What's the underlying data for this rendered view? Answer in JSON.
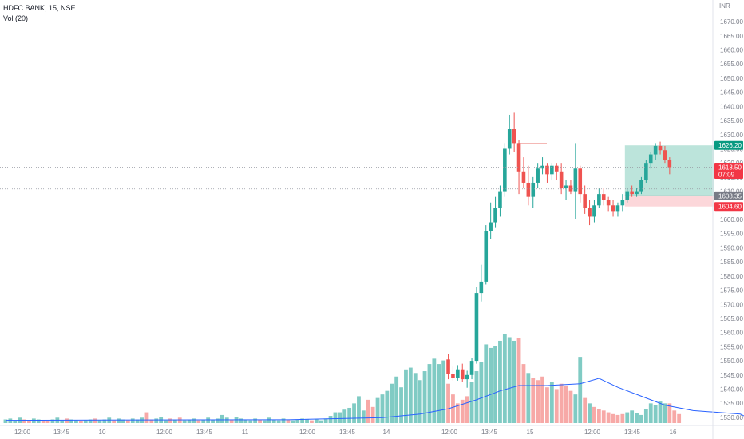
{
  "legend": {
    "symbol": "HDFC BANK, 15, NSE",
    "indicator": "Vol (20)"
  },
  "currency": "INR",
  "colors": {
    "up": "#26a69a",
    "down": "#ef5350",
    "up_vol": "#80cbc4",
    "down_vol": "#f7a9a7",
    "ma": "#2962ff",
    "profit_zone": "#9fd8cc",
    "loss_zone": "#fbd0d4",
    "resistance": "#e0413a",
    "last_price": "#f23645",
    "grey_tag": "#787b86",
    "green_tag": "#089981",
    "red_tag": "#f23645"
  },
  "chart_data": {
    "type": "candlestick",
    "ylim": [
      1528,
      1672
    ],
    "y_ticks": [
      1530,
      1535,
      1540,
      1545,
      1550,
      1555,
      1560,
      1565,
      1570,
      1575,
      1580,
      1585,
      1590,
      1595,
      1600,
      1605,
      1610,
      1615,
      1620,
      1625,
      1630,
      1635,
      1640,
      1645,
      1650,
      1655,
      1660,
      1665,
      1670
    ],
    "x_tick_labels": [
      "12:00",
      "13:45",
      "10",
      "12:00",
      "13:45",
      "11",
      "12:00",
      "13:45",
      "14",
      "12:00",
      "13:45",
      "15",
      "12:00",
      "13:45",
      "16"
    ],
    "candles_start_index": 94,
    "candles": [
      [
        1550.5,
        1552.5,
        1543.5,
        1545.5
      ],
      [
        1545.5,
        1548,
        1543,
        1544
      ],
      [
        1544,
        1548.5,
        1543,
        1547
      ],
      [
        1547,
        1549,
        1542.5,
        1543.5
      ],
      [
        1543.5,
        1546.5,
        1540.5,
        1545
      ],
      [
        1545,
        1551,
        1543.5,
        1550
      ],
      [
        1550,
        1576,
        1549,
        1574
      ],
      [
        1574,
        1584,
        1571,
        1578
      ],
      [
        1578,
        1598,
        1577,
        1596
      ],
      [
        1596,
        1606,
        1593,
        1599
      ],
      [
        1599,
        1608,
        1597,
        1604
      ],
      [
        1604,
        1612,
        1601,
        1610
      ],
      [
        1610,
        1627,
        1608,
        1625
      ],
      [
        1625,
        1637,
        1623,
        1632
      ],
      [
        1632,
        1638,
        1624,
        1627
      ],
      [
        1627,
        1628,
        1609,
        1617
      ],
      [
        1617,
        1622,
        1611,
        1613
      ],
      [
        1613,
        1619,
        1605,
        1608
      ],
      [
        1608,
        1615,
        1604,
        1613
      ],
      [
        1613,
        1620,
        1611,
        1618
      ],
      [
        1618,
        1622,
        1616,
        1619
      ],
      [
        1619,
        1620,
        1613,
        1616
      ],
      [
        1616,
        1620,
        1614,
        1619
      ],
      [
        1619,
        1620,
        1614,
        1617
      ],
      [
        1617,
        1620,
        1609,
        1611
      ],
      [
        1611,
        1614,
        1607,
        1612
      ],
      [
        1612,
        1614,
        1609,
        1610
      ],
      [
        1610,
        1627,
        1600,
        1618
      ],
      [
        1618,
        1619,
        1606,
        1609
      ],
      [
        1609,
        1612,
        1602,
        1604
      ],
      [
        1604,
        1607,
        1598,
        1601
      ],
      [
        1601,
        1607,
        1599,
        1605
      ],
      [
        1605,
        1611,
        1604,
        1609
      ],
      [
        1609,
        1611,
        1605,
        1607
      ],
      [
        1607,
        1608,
        1603,
        1605
      ],
      [
        1605,
        1607,
        1601,
        1603
      ],
      [
        1603,
        1606,
        1601,
        1605
      ],
      [
        1605,
        1609,
        1603,
        1607
      ],
      [
        1607,
        1611,
        1606,
        1610
      ],
      [
        1610,
        1612,
        1608,
        1609
      ],
      [
        1609,
        1611,
        1608,
        1610
      ],
      [
        1610,
        1615,
        1609,
        1614
      ],
      [
        1614,
        1621,
        1613,
        1620
      ],
      [
        1620,
        1624,
        1618,
        1623
      ],
      [
        1623,
        1627,
        1621,
        1626
      ],
      [
        1626,
        1627.5,
        1623,
        1624.5
      ],
      [
        1624.5,
        1626,
        1620,
        1621
      ],
      [
        1621,
        1622,
        1616,
        1618.5
      ]
    ],
    "volume_units": "relative (0-100)",
    "volume": [
      [
        4,
        0
      ],
      [
        5,
        0
      ],
      [
        3,
        0
      ],
      [
        6,
        0
      ],
      [
        4,
        1
      ],
      [
        3,
        1
      ],
      [
        5,
        0
      ],
      [
        4,
        0
      ],
      [
        3,
        1
      ],
      [
        2,
        1
      ],
      [
        4,
        0
      ],
      [
        6,
        0
      ],
      [
        3,
        0
      ],
      [
        5,
        1
      ],
      [
        4,
        0
      ],
      [
        3,
        0
      ],
      [
        2,
        1
      ],
      [
        3,
        0
      ],
      [
        4,
        0
      ],
      [
        5,
        1
      ],
      [
        3,
        0
      ],
      [
        4,
        0
      ],
      [
        6,
        0
      ],
      [
        3,
        1
      ],
      [
        5,
        0
      ],
      [
        4,
        0
      ],
      [
        3,
        1
      ],
      [
        5,
        0
      ],
      [
        4,
        0
      ],
      [
        6,
        0
      ],
      [
        12,
        1
      ],
      [
        4,
        1
      ],
      [
        5,
        0
      ],
      [
        7,
        0
      ],
      [
        3,
        0
      ],
      [
        5,
        1
      ],
      [
        4,
        0
      ],
      [
        6,
        1
      ],
      [
        3,
        0
      ],
      [
        4,
        0
      ],
      [
        5,
        0
      ],
      [
        3,
        1
      ],
      [
        4,
        0
      ],
      [
        6,
        0
      ],
      [
        4,
        0
      ],
      [
        5,
        0
      ],
      [
        9,
        0
      ],
      [
        6,
        0
      ],
      [
        4,
        1
      ],
      [
        7,
        0
      ],
      [
        5,
        0
      ],
      [
        4,
        0
      ],
      [
        3,
        0
      ],
      [
        5,
        0
      ],
      [
        4,
        1
      ],
      [
        3,
        0
      ],
      [
        6,
        0
      ],
      [
        4,
        0
      ],
      [
        3,
        0
      ],
      [
        5,
        0
      ],
      [
        4,
        1
      ],
      [
        3,
        0
      ],
      [
        4,
        0
      ],
      [
        5,
        0
      ],
      [
        4,
        0
      ],
      [
        3,
        1
      ],
      [
        4,
        0
      ],
      [
        3,
        0
      ],
      [
        5,
        0
      ],
      [
        8,
        0
      ],
      [
        12,
        0
      ],
      [
        12,
        0
      ],
      [
        15,
        0
      ],
      [
        17,
        0
      ],
      [
        22,
        0
      ],
      [
        30,
        0
      ],
      [
        14,
        0
      ],
      [
        26,
        1
      ],
      [
        18,
        1
      ],
      [
        28,
        0
      ],
      [
        32,
        0
      ],
      [
        36,
        0
      ],
      [
        44,
        0
      ],
      [
        52,
        0
      ],
      [
        40,
        0
      ],
      [
        60,
        0
      ],
      [
        62,
        0
      ],
      [
        56,
        0
      ],
      [
        48,
        0
      ],
      [
        58,
        0
      ],
      [
        66,
        0
      ],
      [
        72,
        0
      ],
      [
        66,
        0
      ],
      [
        70,
        0
      ],
      [
        44,
        1
      ],
      [
        32,
        1
      ],
      [
        22,
        1
      ],
      [
        26,
        1
      ],
      [
        30,
        1
      ],
      [
        46,
        0
      ],
      [
        58,
        0
      ],
      [
        68,
        0
      ],
      [
        88,
        0
      ],
      [
        84,
        0
      ],
      [
        86,
        0
      ],
      [
        92,
        0
      ],
      [
        100,
        0
      ],
      [
        96,
        0
      ],
      [
        92,
        0
      ],
      [
        95,
        1
      ],
      [
        66,
        1
      ],
      [
        56,
        0
      ],
      [
        50,
        1
      ],
      [
        48,
        1
      ],
      [
        52,
        1
      ],
      [
        40,
        1
      ],
      [
        46,
        0
      ],
      [
        38,
        1
      ],
      [
        44,
        1
      ],
      [
        42,
        1
      ],
      [
        36,
        1
      ],
      [
        32,
        0
      ],
      [
        74,
        0
      ],
      [
        28,
        1
      ],
      [
        22,
        0
      ],
      [
        18,
        1
      ],
      [
        16,
        1
      ],
      [
        14,
        1
      ],
      [
        12,
        1
      ],
      [
        10,
        1
      ],
      [
        9,
        1
      ],
      [
        10,
        1
      ],
      [
        12,
        0
      ],
      [
        14,
        0
      ],
      [
        11,
        0
      ],
      [
        9,
        0
      ],
      [
        16,
        0
      ],
      [
        22,
        0
      ],
      [
        20,
        0
      ],
      [
        24,
        0
      ],
      [
        22,
        0
      ],
      [
        22,
        1
      ],
      [
        14,
        1
      ],
      [
        10,
        1
      ]
    ],
    "volume_ma": [
      [
        0,
        3
      ],
      [
        30,
        3.5
      ],
      [
        60,
        3.7
      ],
      [
        80,
        6
      ],
      [
        88,
        10
      ],
      [
        94,
        16
      ],
      [
        100,
        26
      ],
      [
        105,
        36
      ],
      [
        109,
        42
      ],
      [
        115,
        42
      ],
      [
        122,
        44
      ],
      [
        126,
        50
      ],
      [
        130,
        40
      ],
      [
        135,
        30
      ],
      [
        140,
        20
      ],
      [
        146,
        14
      ],
      [
        151,
        12
      ],
      [
        156,
        10
      ],
      [
        158,
        5
      ]
    ],
    "resistance_line": 1626.8,
    "position": {
      "entry": 1608.35,
      "target": 1626.2,
      "stop": 1604.6,
      "start_index": 132,
      "end_index": 150
    },
    "dotted_levels": [
      1618.5,
      1610.8
    ],
    "price_tags": [
      {
        "value": 1626.2,
        "label": "1626.20",
        "kind": "green"
      },
      {
        "value": 1618.5,
        "label": "1618.50",
        "sub": "07:09",
        "kind": "red"
      },
      {
        "value": 1608.35,
        "label": "1608.35",
        "kind": "grey"
      },
      {
        "value": 1604.6,
        "label": "1604.60",
        "kind": "red"
      }
    ]
  }
}
